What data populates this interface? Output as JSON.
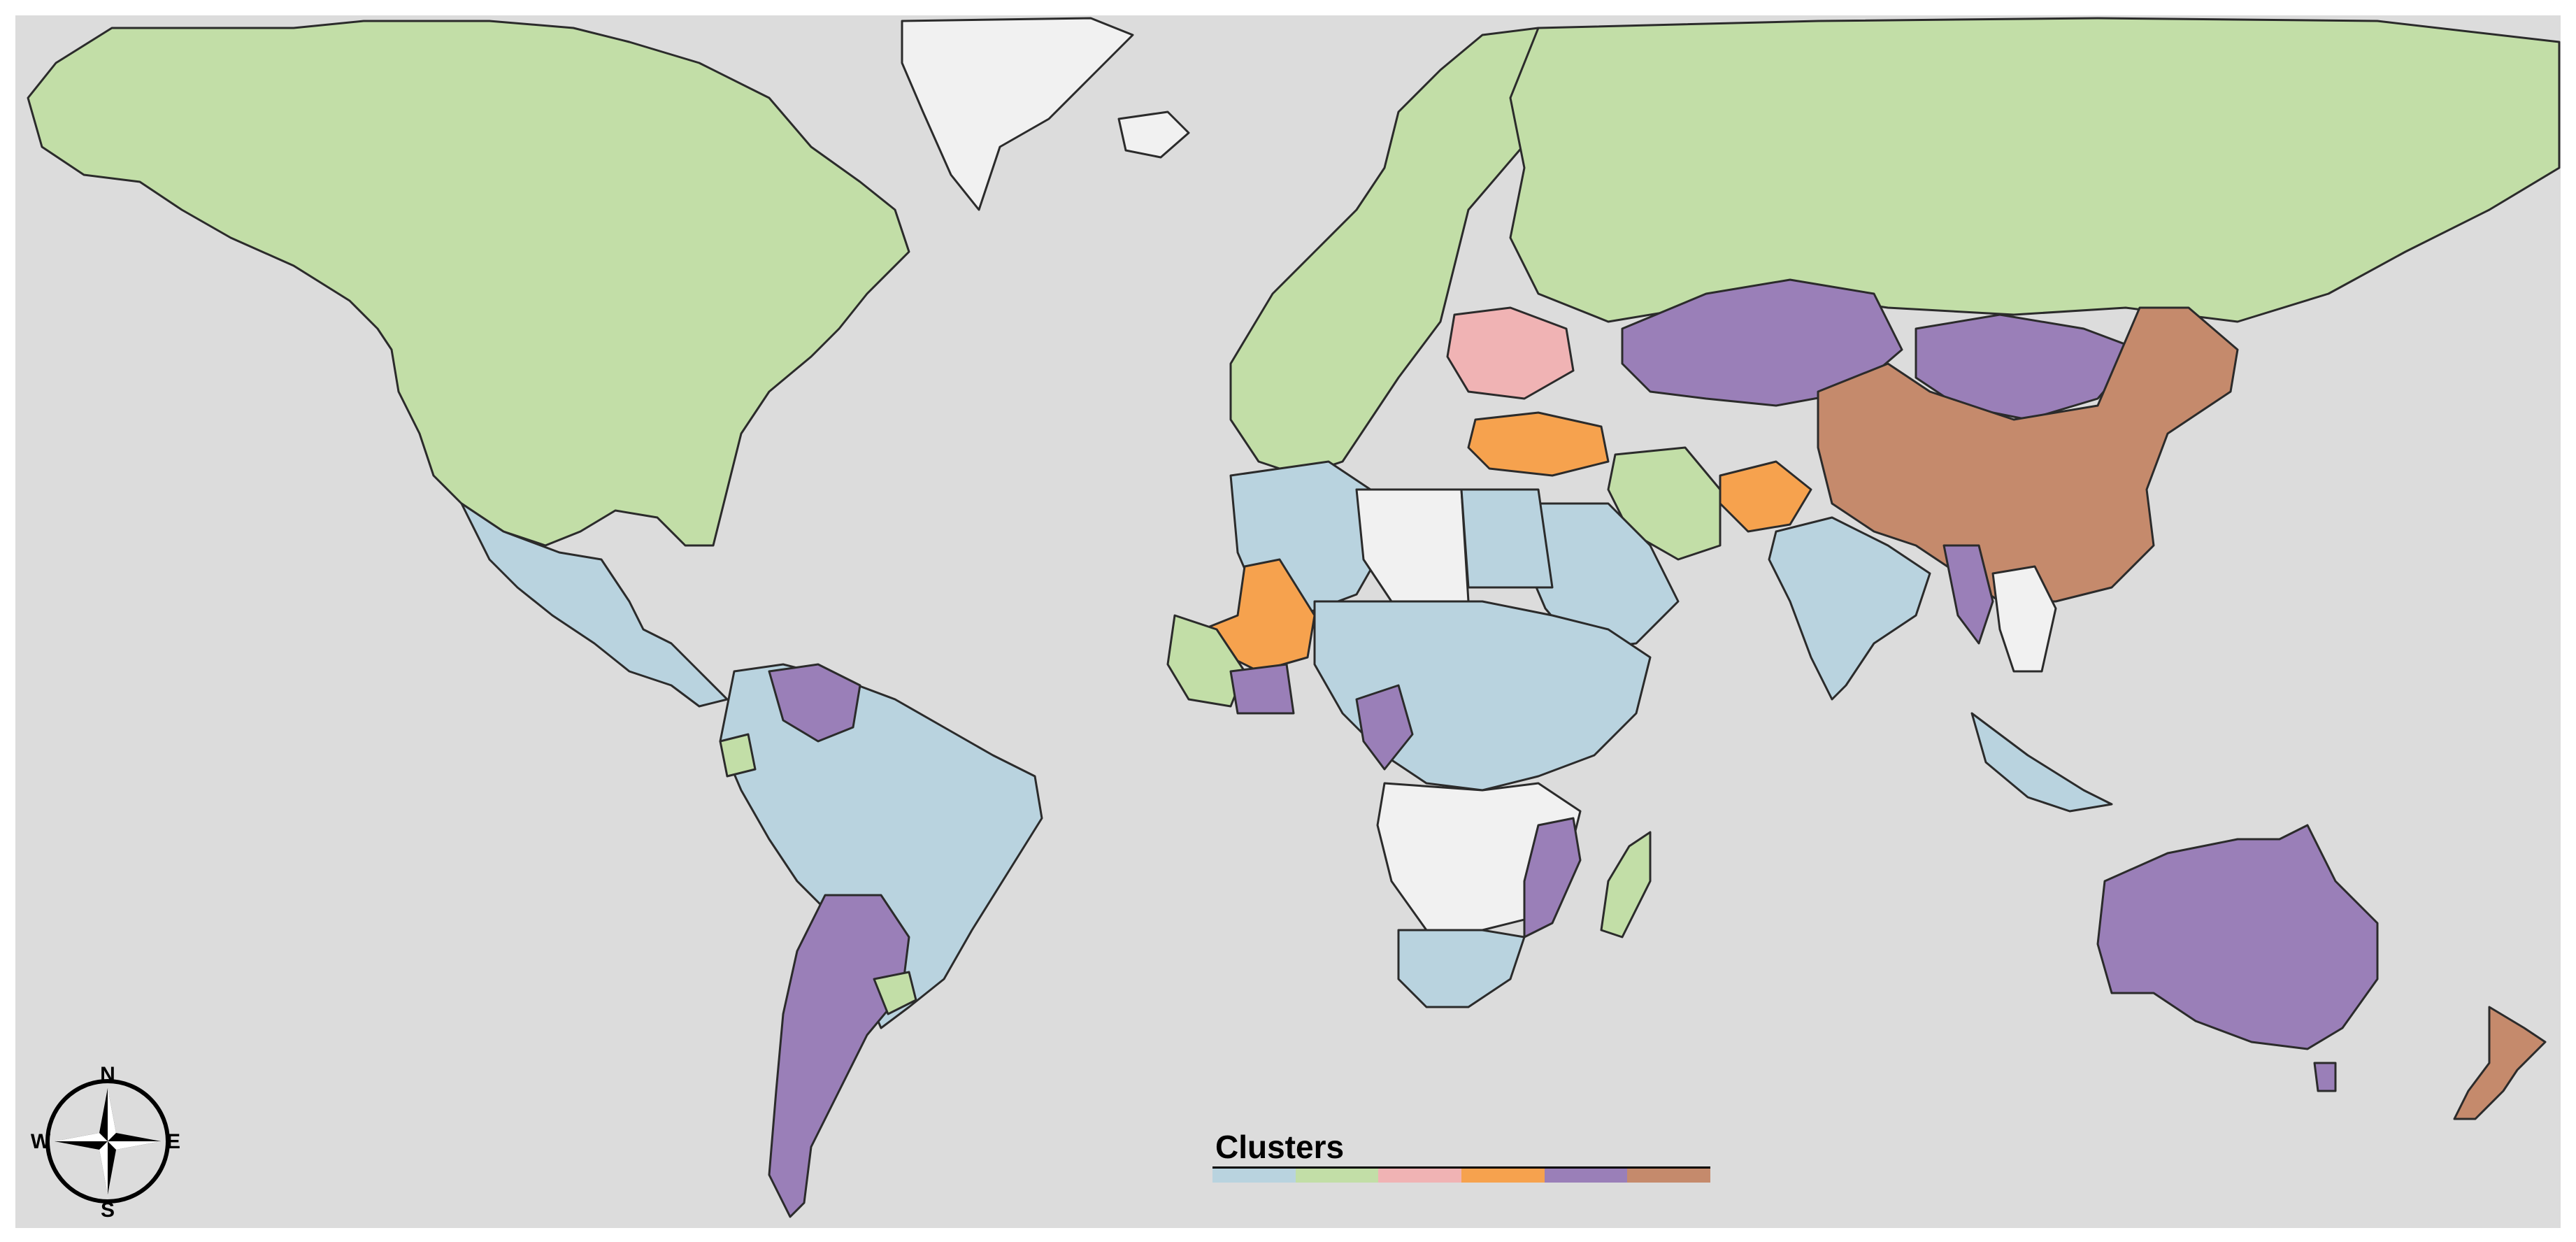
{
  "legend": {
    "title": "Clusters",
    "colors": [
      "#b9d3df",
      "#c2dea7",
      "#f0b3b4",
      "#f6a24e",
      "#9a7fb8",
      "#c58a6c"
    ]
  },
  "compass": {
    "north": "N",
    "south": "S",
    "east": "E",
    "west": "W"
  },
  "colors": {
    "ocean": "#dcdcdc",
    "no_data": "#f1f1f1",
    "border": "#2b2b2b",
    "cluster_1": "#b9d3df",
    "cluster_2": "#c2dea7",
    "cluster_3": "#f0b3b4",
    "cluster_4": "#f6a24e",
    "cluster_5": "#9a7fb8",
    "cluster_6": "#c58a6c"
  }
}
